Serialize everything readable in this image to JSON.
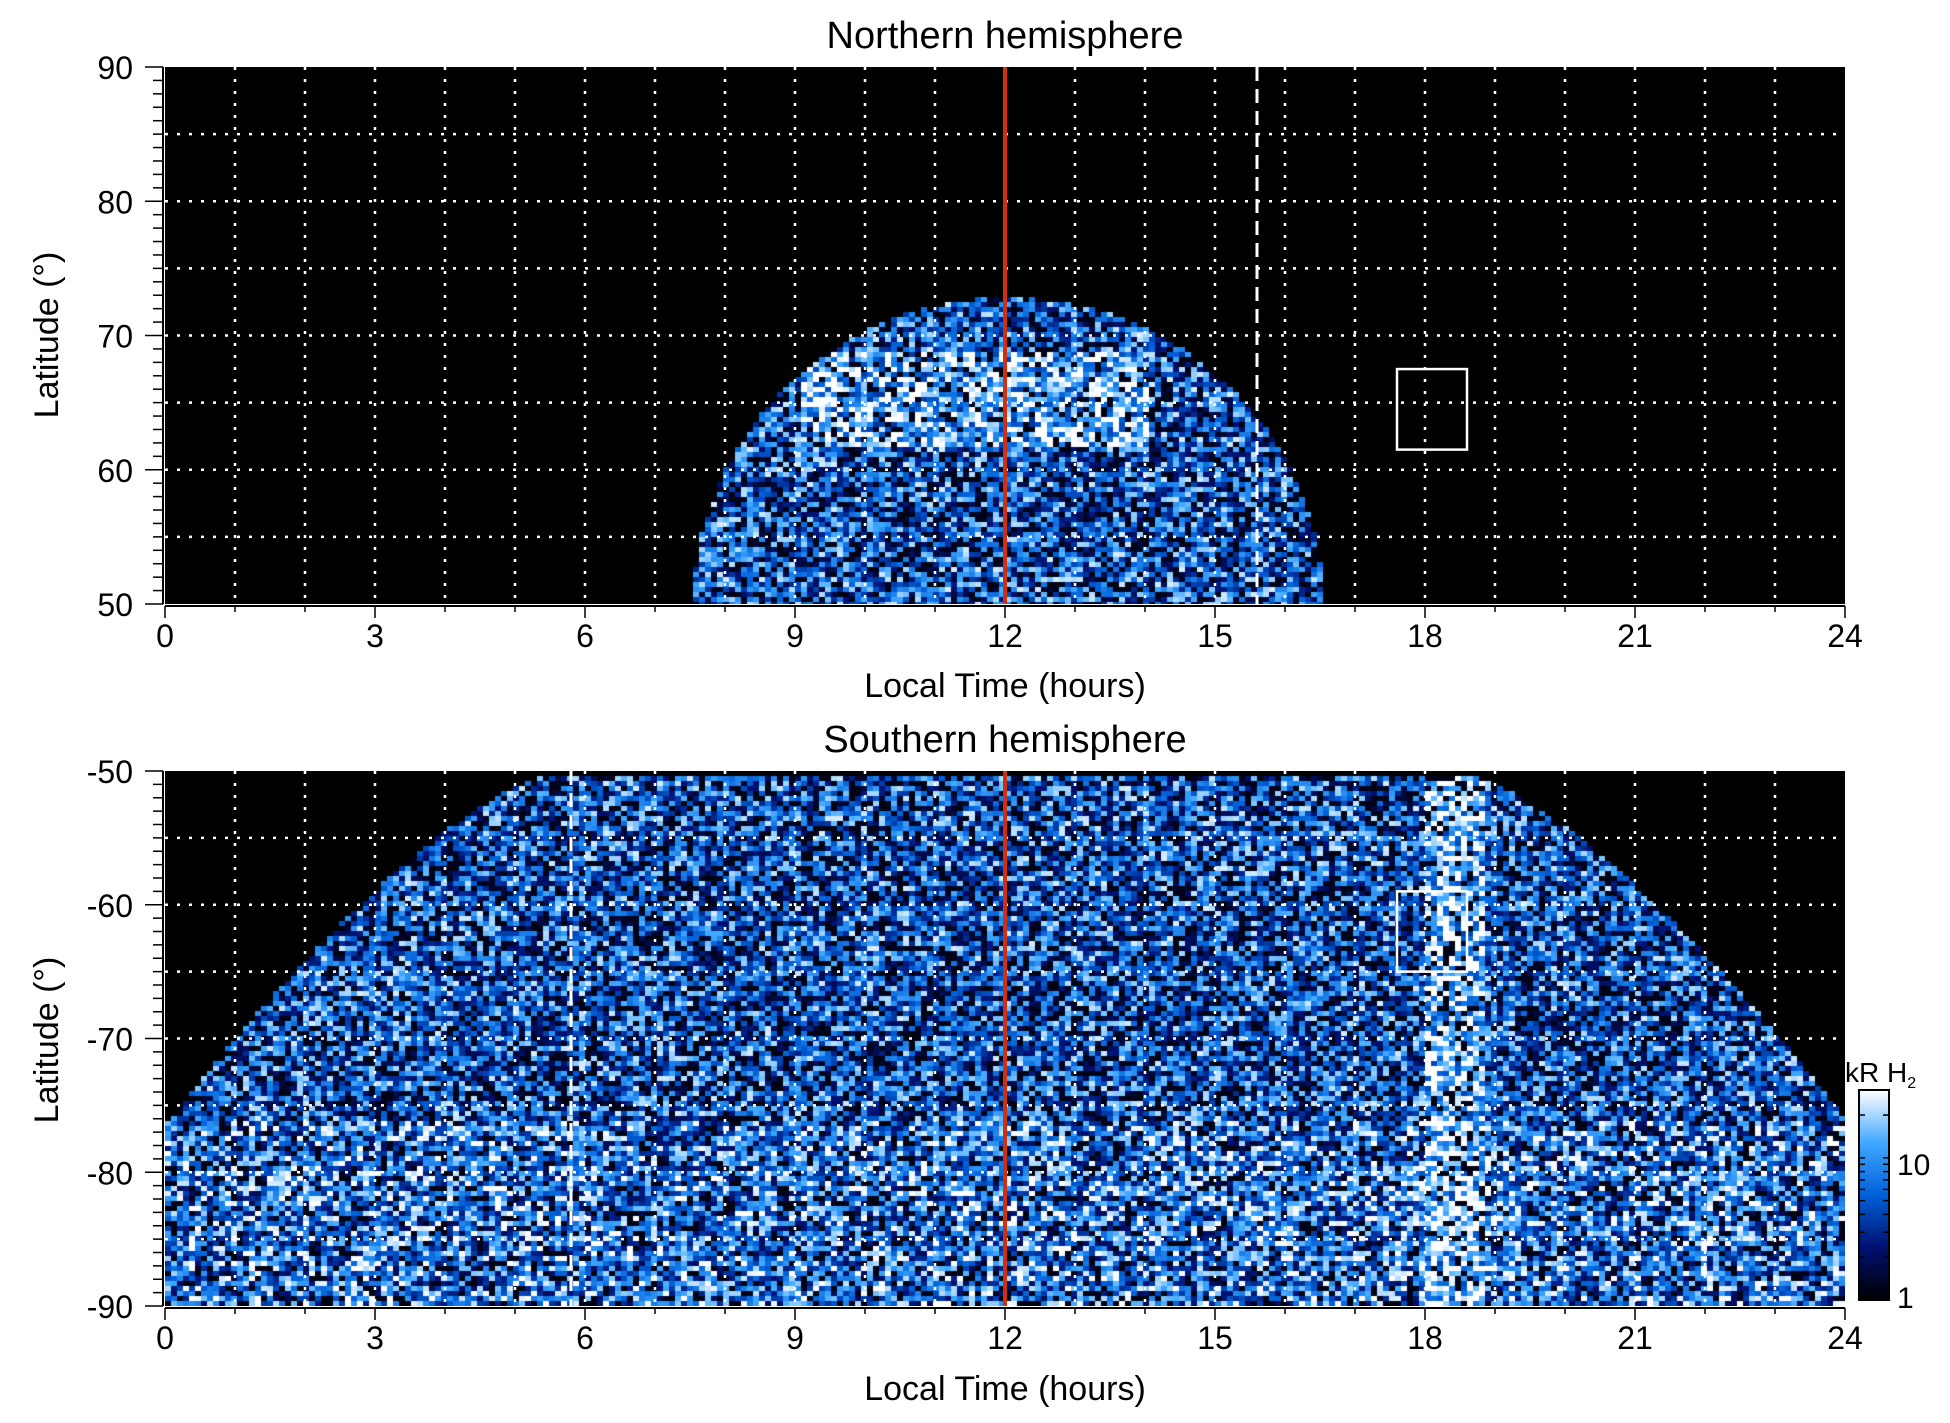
{
  "chart_data": [
    {
      "type": "heatmap",
      "title": "Northern hemisphere",
      "xlabel": "Local Time (hours)",
      "ylabel": "Latitude (°)",
      "xlim": [
        0,
        24
      ],
      "ylim": [
        50,
        90
      ],
      "xticks": [
        "0",
        "3",
        "6",
        "9",
        "12",
        "15",
        "18",
        "21",
        "24"
      ],
      "yticks": [
        "50",
        "60",
        "70",
        "80",
        "90"
      ],
      "grid": true,
      "noon_line_lt": 12,
      "dashed_line_lt": 15.6,
      "box": {
        "lt": [
          17.6,
          18.6
        ],
        "lat": [
          61.5,
          67.5
        ]
      },
      "emission_region": "dome centred at 12 LT, spanning ~7.8-16.6 LT, peaking near 73° latitude"
    },
    {
      "type": "heatmap",
      "title": "Southern hemisphere",
      "xlabel": "Local Time (hours)",
      "ylabel": "Latitude (°)",
      "xlim": [
        0,
        24
      ],
      "ylim": [
        -90,
        -50
      ],
      "xticks": [
        "0",
        "3",
        "6",
        "9",
        "12",
        "15",
        "18",
        "21",
        "24"
      ],
      "yticks": [
        "-90",
        "-80",
        "-70",
        "-60",
        "-50"
      ],
      "grid": true,
      "noon_line_lt": 12,
      "dashed_line_lt": 5.8,
      "box": {
        "lt": [
          17.6,
          18.6
        ],
        "lat": [
          -65,
          -59
        ]
      },
      "colorbar": {
        "label": "kR H",
        "label_sub": "2",
        "scale": "log",
        "range": [
          1,
          30
        ],
        "ticks": [
          "1",
          "10"
        ]
      }
    }
  ],
  "colors": {
    "noon_line": "#d03010",
    "colormap": [
      "#000000",
      "#001070",
      "#0060d8",
      "#40a8ff",
      "#ffffff"
    ]
  }
}
